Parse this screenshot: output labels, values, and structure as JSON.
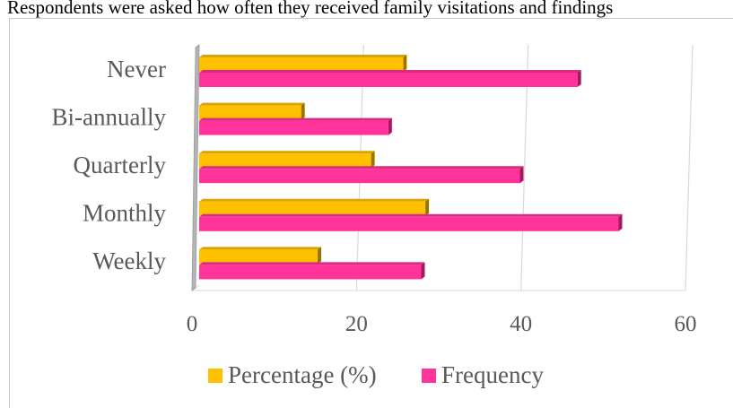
{
  "caption": "Respondents were asked how often they received family visitations and findings",
  "chart_data": {
    "type": "bar",
    "orientation": "horizontal",
    "style": "3d",
    "categories": [
      "Never",
      "Bi-annually",
      "Quarterly",
      "Monthly",
      "Weekly"
    ],
    "series": [
      {
        "name": "Percentage (%)",
        "values": [
          24.8,
          12.4,
          20.9,
          27.5,
          14.4
        ],
        "color": "#FFC000"
      },
      {
        "name": "Frequency",
        "values": [
          46,
          23,
          39,
          51,
          27
        ],
        "color": "#FF3399"
      }
    ],
    "xlim": [
      0,
      60
    ],
    "xticks": [
      "0",
      "20",
      "40",
      "60"
    ],
    "grid": true,
    "legend": "bottom"
  }
}
